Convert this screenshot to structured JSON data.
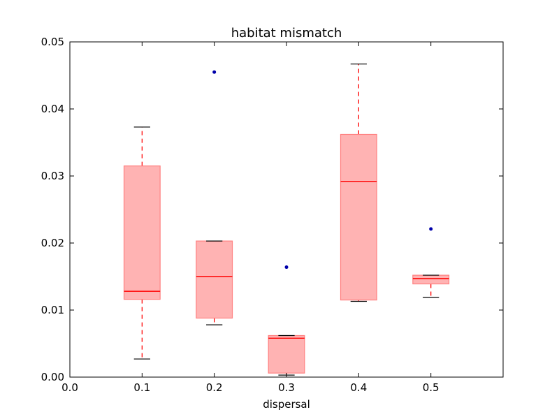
{
  "chart_data": {
    "type": "box",
    "title": "habitat mismatch",
    "xlabel": "dispersal",
    "ylabel": "",
    "xlim": [
      0.0,
      0.6
    ],
    "ylim": [
      0.0,
      0.05
    ],
    "x_ticks": [
      "0.0",
      "0.1",
      "0.2",
      "0.3",
      "0.4",
      "0.5"
    ],
    "y_ticks": [
      "0.00",
      "0.01",
      "0.02",
      "0.03",
      "0.04",
      "0.05"
    ],
    "grid": false,
    "box_color": "#ffb3b3",
    "box_edge_color": "#ff8080",
    "median_color": "#ff0000",
    "whisker_color": "#ff0000",
    "cap_color": "#000000",
    "outlier_color": "#0000aa",
    "boxes": [
      {
        "x": 0.1,
        "whislo": 0.0027,
        "q1": 0.0116,
        "median": 0.0128,
        "q3": 0.0315,
        "whishi": 0.0373,
        "fliers": []
      },
      {
        "x": 0.2,
        "whislo": 0.0078,
        "q1": 0.0088,
        "median": 0.015,
        "q3": 0.0203,
        "whishi": 0.0203,
        "fliers": [
          0.0455
        ]
      },
      {
        "x": 0.3,
        "whislo": 0.0003,
        "q1": 0.0006,
        "median": 0.0058,
        "q3": 0.0062,
        "whishi": 0.0062,
        "fliers": [
          0.0164
        ]
      },
      {
        "x": 0.4,
        "whislo": 0.0113,
        "q1": 0.0115,
        "median": 0.0292,
        "q3": 0.0362,
        "whishi": 0.0467,
        "fliers": []
      },
      {
        "x": 0.5,
        "whislo": 0.0119,
        "q1": 0.0139,
        "median": 0.0147,
        "q3": 0.0152,
        "whishi": 0.0152,
        "fliers": [
          0.0221
        ]
      }
    ]
  }
}
